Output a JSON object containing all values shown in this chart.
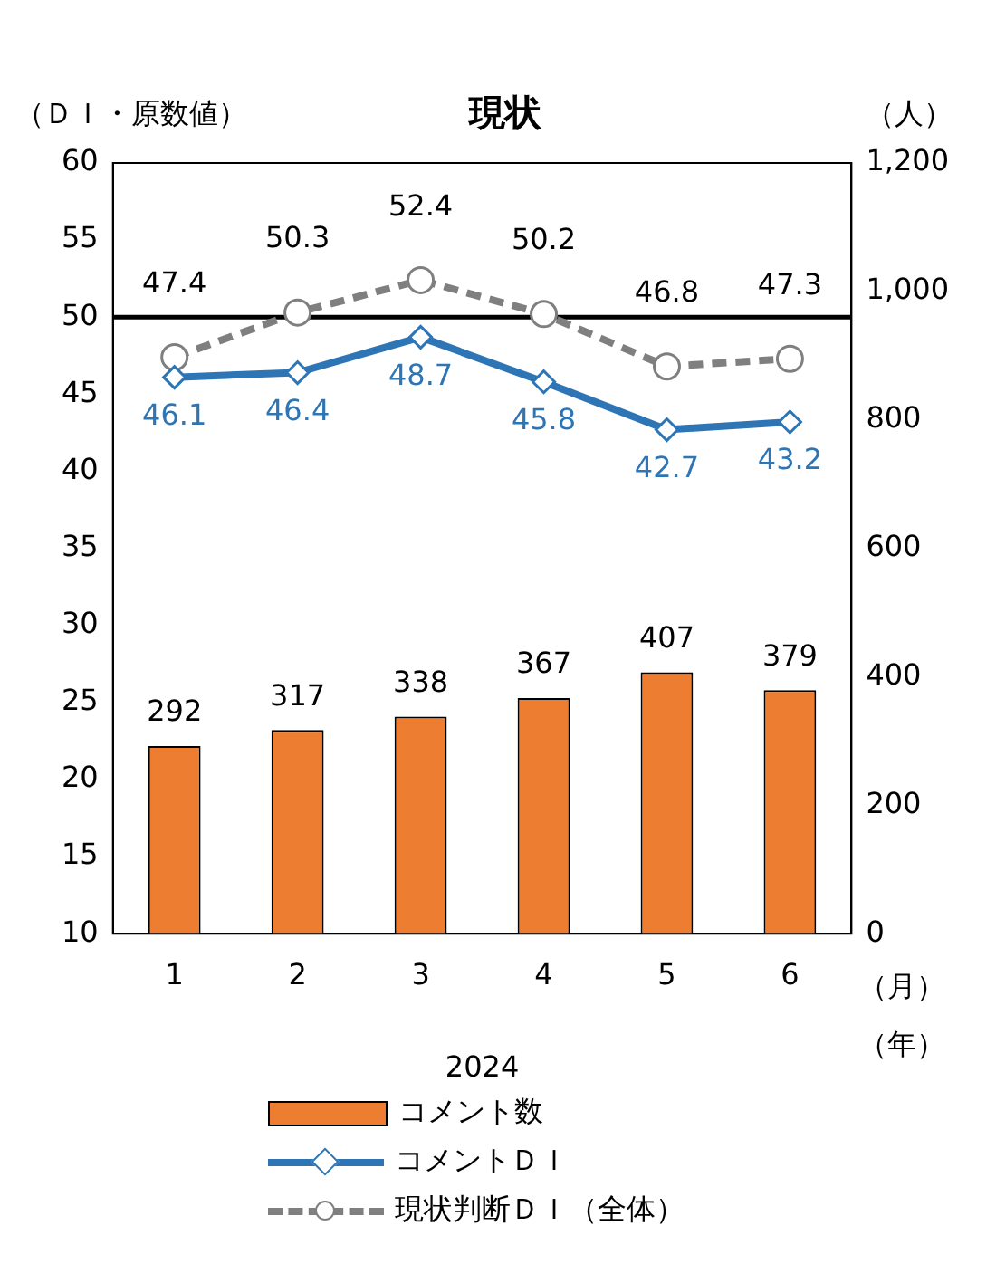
{
  "chart_data": {
    "type": "bar",
    "title": "現状",
    "ylabel": "（ＤＩ・原数値）",
    "y2label": "（人）",
    "xlabel": "2024",
    "annotations": [
      "（月）",
      "（年）"
    ],
    "categories": [
      "1",
      "2",
      "3",
      "4",
      "5",
      "6"
    ],
    "series": [
      {
        "name": "コメント数",
        "type": "bar",
        "axis": "y2",
        "color": "#ed7d31",
        "values": [
          292,
          317,
          338,
          367,
          407,
          379
        ]
      },
      {
        "name": "コメントＤＩ",
        "type": "line",
        "color": "#2e75b6",
        "marker": "diamond",
        "line_style": "solid",
        "values": [
          46.1,
          46.4,
          48.7,
          45.8,
          42.7,
          43.2
        ]
      },
      {
        "name": "現状判断ＤＩ（全体）",
        "type": "line",
        "color": "#7f7f7f",
        "marker": "circle",
        "line_style": "dashed",
        "values": [
          47.4,
          50.3,
          52.4,
          50.2,
          46.8,
          47.3
        ]
      }
    ],
    "ylim": [
      10,
      60
    ],
    "yticks": [
      10,
      15,
      20,
      25,
      30,
      35,
      40,
      45,
      50,
      55,
      60
    ],
    "y2lim": [
      0,
      1200
    ],
    "y2ticks": [
      0,
      200,
      400,
      600,
      800,
      {
        "value": 1000,
        "label": "1,000"
      },
      {
        "value": 1200,
        "label": "1,200"
      }
    ],
    "ref_lines": [
      {
        "axis": "y",
        "value": 50,
        "color": "#000000"
      }
    ],
    "data_labels": true,
    "grid": false,
    "legend": "bottom"
  }
}
